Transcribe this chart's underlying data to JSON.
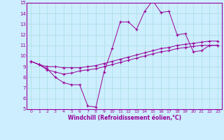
{
  "xlabel": "Windchill (Refroidissement éolien,°C)",
  "bg_color": "#cceeff",
  "line_color": "#990099",
  "grid_color": "#aadddd",
  "xlim": [
    -0.5,
    23.5
  ],
  "ylim": [
    5,
    15
  ],
  "xticks": [
    0,
    1,
    2,
    3,
    4,
    5,
    6,
    7,
    8,
    9,
    10,
    11,
    12,
    13,
    14,
    15,
    16,
    17,
    18,
    19,
    20,
    21,
    22,
    23
  ],
  "yticks": [
    5,
    6,
    7,
    8,
    9,
    10,
    11,
    12,
    13,
    14,
    15
  ],
  "line1_x": [
    0,
    1,
    2,
    3,
    4,
    5,
    6,
    7,
    8,
    9,
    10,
    11,
    12,
    13,
    14,
    15,
    16,
    17,
    18,
    19,
    20,
    21,
    22,
    23
  ],
  "line1_y": [
    9.5,
    9.2,
    8.8,
    8.0,
    7.5,
    7.3,
    7.3,
    5.3,
    5.2,
    8.5,
    10.7,
    13.2,
    13.2,
    12.5,
    14.2,
    15.2,
    14.1,
    14.2,
    12.0,
    12.1,
    10.4,
    10.5,
    11.0,
    11.0
  ],
  "line2_x": [
    0,
    1,
    2,
    3,
    4,
    5,
    6,
    7,
    8,
    9,
    10,
    11,
    12,
    13,
    14,
    15,
    16,
    17,
    18,
    19,
    20,
    21,
    22,
    23
  ],
  "line2_y": [
    9.5,
    9.2,
    9.0,
    9.0,
    8.9,
    8.9,
    8.9,
    9.0,
    9.1,
    9.3,
    9.5,
    9.7,
    9.9,
    10.1,
    10.3,
    10.5,
    10.7,
    10.8,
    11.0,
    11.1,
    11.2,
    11.3,
    11.4,
    11.4
  ],
  "line3_x": [
    0,
    1,
    2,
    3,
    4,
    5,
    6,
    7,
    8,
    9,
    10,
    11,
    12,
    13,
    14,
    15,
    16,
    17,
    18,
    19,
    20,
    21,
    22,
    23
  ],
  "line3_y": [
    9.5,
    9.2,
    8.7,
    8.5,
    8.3,
    8.4,
    8.6,
    8.7,
    8.8,
    9.0,
    9.2,
    9.4,
    9.6,
    9.8,
    10.0,
    10.2,
    10.4,
    10.5,
    10.7,
    10.8,
    10.9,
    11.0,
    11.0,
    11.0
  ]
}
